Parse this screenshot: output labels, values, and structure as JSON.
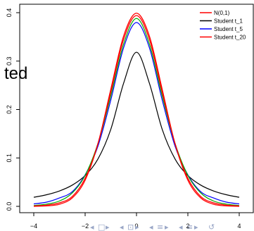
{
  "overlay_text": "ted",
  "chart_data": {
    "type": "line",
    "title": "",
    "xlabel": "",
    "ylabel": "",
    "xlim": [
      -4,
      4
    ],
    "ylim": [
      0,
      0.4
    ],
    "x_ticks": [
      "−4",
      "−2",
      "0",
      "2",
      "4"
    ],
    "y_ticks": [
      "0.0",
      "0.1",
      "0.2",
      "0.3",
      "0.4"
    ],
    "legend_position": "top-right",
    "x": [
      -4,
      -3.5,
      -3,
      -2.5,
      -2,
      -1.5,
      -1,
      -0.5,
      0,
      0.5,
      1,
      1.5,
      2,
      2.5,
      3,
      3.5,
      4
    ],
    "series": [
      {
        "name": "N(0,1)",
        "color": "#ff0000",
        "values": [
          0.0001,
          0.0009,
          0.0044,
          0.0175,
          0.054,
          0.1295,
          0.242,
          0.3521,
          0.3989,
          0.3521,
          0.242,
          0.1295,
          0.054,
          0.0175,
          0.0044,
          0.0009,
          0.0001
        ]
      },
      {
        "name": "Student t_1",
        "color": "#000000",
        "values": [
          0.0187,
          0.024,
          0.0318,
          0.0439,
          0.0637,
          0.0979,
          0.1592,
          0.2546,
          0.3183,
          0.2546,
          0.1592,
          0.0979,
          0.0637,
          0.0439,
          0.0318,
          0.024,
          0.0187
        ]
      },
      {
        "name": "Student t_5",
        "color": "#0000ff",
        "values": [
          0.0051,
          0.0087,
          0.0173,
          0.0303,
          0.0651,
          0.1245,
          0.2197,
          0.3279,
          0.3796,
          0.3279,
          0.2197,
          0.1245,
          0.0651,
          0.0303,
          0.0173,
          0.0087,
          0.0051
        ]
      },
      {
        "name": "Student t_20",
        "color": "#ff0000",
        "values": [
          0.0008,
          0.0026,
          0.0072,
          0.0205,
          0.0581,
          0.1295,
          0.236,
          0.3452,
          0.394,
          0.3452,
          0.236,
          0.1295,
          0.0581,
          0.0205,
          0.0072,
          0.0026,
          0.0008
        ]
      }
    ],
    "extra_unlabeled_series": [
      {
        "color": "#00aa00",
        "values": [
          0.0017,
          0.0046,
          0.0111,
          0.0277,
          0.064,
          0.1302,
          0.2284,
          0.3358,
          0.388,
          0.3358,
          0.2284,
          0.1302,
          0.064,
          0.0277,
          0.0111,
          0.0046,
          0.0017
        ]
      }
    ]
  },
  "navigation": {
    "glyphs": [
      "◂",
      "□",
      "▸",
      "◂",
      "⊡",
      "▸",
      "◂",
      "≡",
      "▸",
      "◂",
      "≡",
      "▸",
      "↺"
    ]
  }
}
